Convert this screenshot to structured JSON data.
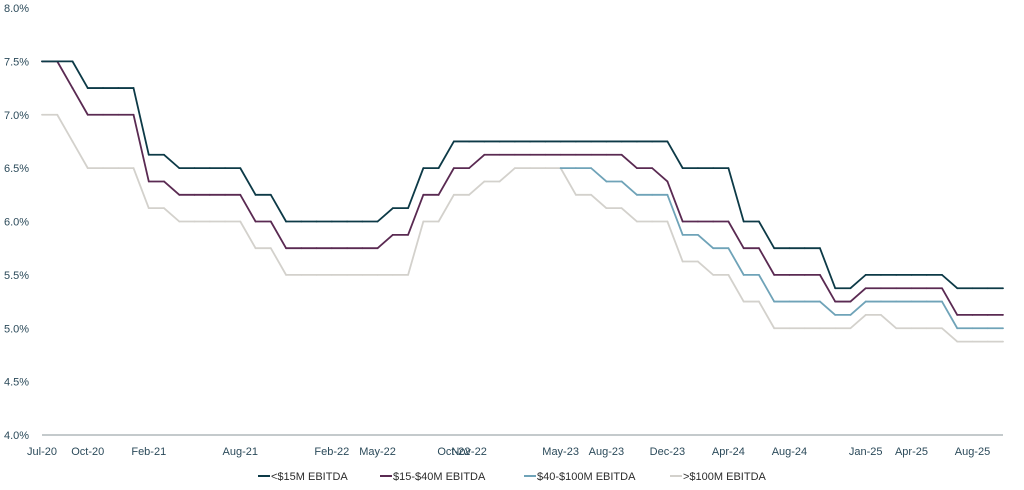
{
  "chart_data": {
    "type": "line",
    "title": "",
    "xlabel": "",
    "ylabel": "",
    "ylim": [
      4.0,
      8.0
    ],
    "y_ticks": [
      "4.0%",
      "4.5%",
      "5.0%",
      "5.5%",
      "6.0%",
      "6.5%",
      "7.0%",
      "7.5%",
      "8.0%"
    ],
    "y_tick_values": [
      4.0,
      4.5,
      5.0,
      5.5,
      6.0,
      6.5,
      7.0,
      7.5,
      8.0
    ],
    "x_start": "Jul-20",
    "x_end": "Oct-25",
    "x_ticks": [
      "Jul-20",
      "Oct-20",
      "Feb-21",
      "Aug-21",
      "Feb-22",
      "May-22",
      "Oct-22",
      "Nov-22",
      "May-23",
      "Aug-23",
      "Dec-23",
      "Apr-24",
      "Aug-24",
      "Jan-25",
      "Apr-25",
      "Aug-25"
    ],
    "grid": false,
    "legend_position": "bottom",
    "series": [
      {
        "name": "<$15M EBITDA",
        "color": "#0d3a47",
        "points": [
          [
            "Jul-20",
            7.5
          ],
          [
            "Aug-20",
            7.5
          ],
          [
            "Sep-20",
            7.5
          ],
          [
            "Oct-20",
            7.25
          ],
          [
            "Nov-20",
            7.25
          ],
          [
            "Dec-20",
            7.25
          ],
          [
            "Jan-21",
            7.25
          ],
          [
            "Feb-21",
            6.625
          ],
          [
            "Mar-21",
            6.625
          ],
          [
            "Apr-21",
            6.5
          ],
          [
            "May-21",
            6.5
          ],
          [
            "Jun-21",
            6.5
          ],
          [
            "Jul-21",
            6.5
          ],
          [
            "Aug-21",
            6.5
          ],
          [
            "Sep-21",
            6.25
          ],
          [
            "Oct-21",
            6.25
          ],
          [
            "Nov-21",
            6.0
          ],
          [
            "Dec-21",
            6.0
          ],
          [
            "Jan-22",
            6.0
          ],
          [
            "Feb-22",
            6.0
          ],
          [
            "Mar-22",
            6.0
          ],
          [
            "Apr-22",
            6.0
          ],
          [
            "May-22",
            6.0
          ],
          [
            "Jun-22",
            6.125
          ],
          [
            "Jul-22",
            6.125
          ],
          [
            "Aug-22",
            6.5
          ],
          [
            "Sep-22",
            6.5
          ],
          [
            "Oct-22",
            6.75
          ],
          [
            "Nov-22",
            6.75
          ],
          [
            "Dec-22",
            6.75
          ],
          [
            "Jan-23",
            6.75
          ],
          [
            "Feb-23",
            6.75
          ],
          [
            "Mar-23",
            6.75
          ],
          [
            "Apr-23",
            6.75
          ],
          [
            "May-23",
            6.75
          ],
          [
            "Jun-23",
            6.75
          ],
          [
            "Jul-23",
            6.75
          ],
          [
            "Aug-23",
            6.75
          ],
          [
            "Sep-23",
            6.75
          ],
          [
            "Oct-23",
            6.75
          ],
          [
            "Nov-23",
            6.75
          ],
          [
            "Dec-23",
            6.75
          ],
          [
            "Jan-24",
            6.5
          ],
          [
            "Feb-24",
            6.5
          ],
          [
            "Mar-24",
            6.5
          ],
          [
            "Apr-24",
            6.5
          ],
          [
            "May-24",
            6.0
          ],
          [
            "Jun-24",
            6.0
          ],
          [
            "Jul-24",
            5.75
          ],
          [
            "Aug-24",
            5.75
          ],
          [
            "Sep-24",
            5.75
          ],
          [
            "Oct-24",
            5.75
          ],
          [
            "Nov-24",
            5.375
          ],
          [
            "Dec-24",
            5.375
          ],
          [
            "Jan-25",
            5.5
          ],
          [
            "Feb-25",
            5.5
          ],
          [
            "Mar-25",
            5.5
          ],
          [
            "Apr-25",
            5.5
          ],
          [
            "May-25",
            5.5
          ],
          [
            "Jun-25",
            5.5
          ],
          [
            "Jul-25",
            5.375
          ],
          [
            "Aug-25",
            5.375
          ],
          [
            "Sep-25",
            5.375
          ],
          [
            "Oct-25",
            5.375
          ]
        ]
      },
      {
        "name": "$15-$40M EBITDA",
        "color": "#5a2a52",
        "points": [
          [
            "Jul-20",
            7.5
          ],
          [
            "Aug-20",
            7.5
          ],
          [
            "Sep-20",
            7.25
          ],
          [
            "Oct-20",
            7.0
          ],
          [
            "Nov-20",
            7.0
          ],
          [
            "Dec-20",
            7.0
          ],
          [
            "Jan-21",
            7.0
          ],
          [
            "Feb-21",
            6.375
          ],
          [
            "Mar-21",
            6.375
          ],
          [
            "Apr-21",
            6.25
          ],
          [
            "May-21",
            6.25
          ],
          [
            "Jun-21",
            6.25
          ],
          [
            "Jul-21",
            6.25
          ],
          [
            "Aug-21",
            6.25
          ],
          [
            "Sep-21",
            6.0
          ],
          [
            "Oct-21",
            6.0
          ],
          [
            "Nov-21",
            5.75
          ],
          [
            "Dec-21",
            5.75
          ],
          [
            "Jan-22",
            5.75
          ],
          [
            "Feb-22",
            5.75
          ],
          [
            "Mar-22",
            5.75
          ],
          [
            "Apr-22",
            5.75
          ],
          [
            "May-22",
            5.75
          ],
          [
            "Jun-22",
            5.875
          ],
          [
            "Jul-22",
            5.875
          ],
          [
            "Aug-22",
            6.25
          ],
          [
            "Sep-22",
            6.25
          ],
          [
            "Oct-22",
            6.5
          ],
          [
            "Nov-22",
            6.5
          ],
          [
            "Dec-22",
            6.625
          ],
          [
            "Jan-23",
            6.625
          ],
          [
            "Feb-23",
            6.625
          ],
          [
            "Mar-23",
            6.625
          ],
          [
            "Apr-23",
            6.625
          ],
          [
            "May-23",
            6.625
          ],
          [
            "Jun-23",
            6.625
          ],
          [
            "Jul-23",
            6.625
          ],
          [
            "Aug-23",
            6.625
          ],
          [
            "Sep-23",
            6.625
          ],
          [
            "Oct-23",
            6.5
          ],
          [
            "Nov-23",
            6.5
          ],
          [
            "Dec-23",
            6.375
          ],
          [
            "Jan-24",
            6.0
          ],
          [
            "Feb-24",
            6.0
          ],
          [
            "Mar-24",
            6.0
          ],
          [
            "Apr-24",
            6.0
          ],
          [
            "May-24",
            5.75
          ],
          [
            "Jun-24",
            5.75
          ],
          [
            "Jul-24",
            5.5
          ],
          [
            "Aug-24",
            5.5
          ],
          [
            "Sep-24",
            5.5
          ],
          [
            "Oct-24",
            5.5
          ],
          [
            "Nov-24",
            5.25
          ],
          [
            "Dec-24",
            5.25
          ],
          [
            "Jan-25",
            5.375
          ],
          [
            "Feb-25",
            5.375
          ],
          [
            "Mar-25",
            5.375
          ],
          [
            "Apr-25",
            5.375
          ],
          [
            "May-25",
            5.375
          ],
          [
            "Jun-25",
            5.375
          ],
          [
            "Jul-25",
            5.125
          ],
          [
            "Aug-25",
            5.125
          ],
          [
            "Sep-25",
            5.125
          ],
          [
            "Oct-25",
            5.125
          ]
        ]
      },
      {
        "name": "$40-$100M EBITDA",
        "color": "#6fa3b8",
        "points": [
          [
            "May-23",
            6.5
          ],
          [
            "Jun-23",
            6.5
          ],
          [
            "Jul-23",
            6.5
          ],
          [
            "Aug-23",
            6.375
          ],
          [
            "Sep-23",
            6.375
          ],
          [
            "Oct-23",
            6.25
          ],
          [
            "Nov-23",
            6.25
          ],
          [
            "Dec-23",
            6.25
          ],
          [
            "Jan-24",
            5.875
          ],
          [
            "Feb-24",
            5.875
          ],
          [
            "Mar-24",
            5.75
          ],
          [
            "Apr-24",
            5.75
          ],
          [
            "May-24",
            5.5
          ],
          [
            "Jun-24",
            5.5
          ],
          [
            "Jul-24",
            5.25
          ],
          [
            "Aug-24",
            5.25
          ],
          [
            "Sep-24",
            5.25
          ],
          [
            "Oct-24",
            5.25
          ],
          [
            "Nov-24",
            5.125
          ],
          [
            "Dec-24",
            5.125
          ],
          [
            "Jan-25",
            5.25
          ],
          [
            "Feb-25",
            5.25
          ],
          [
            "Mar-25",
            5.25
          ],
          [
            "Apr-25",
            5.25
          ],
          [
            "May-25",
            5.25
          ],
          [
            "Jun-25",
            5.25
          ],
          [
            "Jul-25",
            5.0
          ],
          [
            "Aug-25",
            5.0
          ],
          [
            "Sep-25",
            5.0
          ],
          [
            "Oct-25",
            5.0
          ]
        ]
      },
      {
        "name": ">$100M EBITDA",
        "color": "#d3d1cc",
        "points": [
          [
            "Jul-20",
            7.0
          ],
          [
            "Aug-20",
            7.0
          ],
          [
            "Sep-20",
            6.75
          ],
          [
            "Oct-20",
            6.5
          ],
          [
            "Nov-20",
            6.5
          ],
          [
            "Dec-20",
            6.5
          ],
          [
            "Jan-21",
            6.5
          ],
          [
            "Feb-21",
            6.125
          ],
          [
            "Mar-21",
            6.125
          ],
          [
            "Apr-21",
            6.0
          ],
          [
            "May-21",
            6.0
          ],
          [
            "Jun-21",
            6.0
          ],
          [
            "Jul-21",
            6.0
          ],
          [
            "Aug-21",
            6.0
          ],
          [
            "Sep-21",
            5.75
          ],
          [
            "Oct-21",
            5.75
          ],
          [
            "Nov-21",
            5.5
          ],
          [
            "Dec-21",
            5.5
          ],
          [
            "Jan-22",
            5.5
          ],
          [
            "Feb-22",
            5.5
          ],
          [
            "Mar-22",
            5.5
          ],
          [
            "Apr-22",
            5.5
          ],
          [
            "May-22",
            5.5
          ],
          [
            "Jun-22",
            5.5
          ],
          [
            "Jul-22",
            5.5
          ],
          [
            "Aug-22",
            6.0
          ],
          [
            "Sep-22",
            6.0
          ],
          [
            "Oct-22",
            6.25
          ],
          [
            "Nov-22",
            6.25
          ],
          [
            "Dec-22",
            6.375
          ],
          [
            "Jan-23",
            6.375
          ],
          [
            "Feb-23",
            6.5
          ],
          [
            "Mar-23",
            6.5
          ],
          [
            "Apr-23",
            6.5
          ],
          [
            "May-23",
            6.5
          ],
          [
            "Jun-23",
            6.25
          ],
          [
            "Jul-23",
            6.25
          ],
          [
            "Aug-23",
            6.125
          ],
          [
            "Sep-23",
            6.125
          ],
          [
            "Oct-23",
            6.0
          ],
          [
            "Nov-23",
            6.0
          ],
          [
            "Dec-23",
            6.0
          ],
          [
            "Jan-24",
            5.625
          ],
          [
            "Feb-24",
            5.625
          ],
          [
            "Mar-24",
            5.5
          ],
          [
            "Apr-24",
            5.5
          ],
          [
            "May-24",
            5.25
          ],
          [
            "Jun-24",
            5.25
          ],
          [
            "Jul-24",
            5.0
          ],
          [
            "Aug-24",
            5.0
          ],
          [
            "Sep-24",
            5.0
          ],
          [
            "Oct-24",
            5.0
          ],
          [
            "Nov-24",
            5.0
          ],
          [
            "Dec-24",
            5.0
          ],
          [
            "Jan-25",
            5.125
          ],
          [
            "Feb-25",
            5.125
          ],
          [
            "Mar-25",
            5.0
          ],
          [
            "Apr-25",
            5.0
          ],
          [
            "May-25",
            5.0
          ],
          [
            "Jun-25",
            5.0
          ],
          [
            "Jul-25",
            4.875
          ],
          [
            "Aug-25",
            4.875
          ],
          [
            "Sep-25",
            4.875
          ],
          [
            "Oct-25",
            4.875
          ]
        ]
      }
    ]
  }
}
